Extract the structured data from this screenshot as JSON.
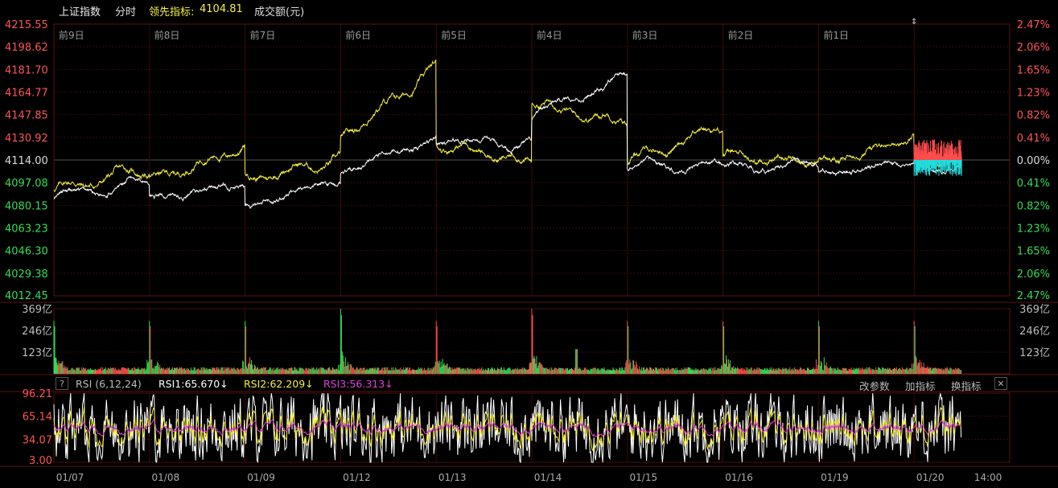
{
  "header": {
    "index_name": "上证指数",
    "mode": "分时",
    "leading_label": "领先指标:",
    "leading_value": "4104.81",
    "volume_label": "成交额(元)"
  },
  "price_axis": {
    "left_ticks": [
      "4215.55",
      "4198.62",
      "4181.70",
      "4164.77",
      "4147.85",
      "4130.92",
      "4114.00",
      "4097.08",
      "4080.15",
      "4063.23",
      "4046.30",
      "4029.38",
      "4012.45"
    ],
    "right_ticks": [
      "2.47%",
      "2.06%",
      "1.65%",
      "1.23%",
      "0.82%",
      "0.41%",
      "0.00%",
      "0.41%",
      "0.82%",
      "1.23%",
      "1.65%",
      "2.06%",
      "2.47%"
    ],
    "prev_close": 4114.0
  },
  "day_labels": [
    "前9日",
    "前8日",
    "前7日",
    "前6日",
    "前5日",
    "前4日",
    "前3日",
    "前2日",
    "前1日"
  ],
  "volume_axis": {
    "left_ticks": [
      "369亿",
      "246亿",
      "123亿"
    ],
    "right_ticks": [
      "369亿",
      "246亿",
      "123亿"
    ],
    "max": 369
  },
  "rsi": {
    "title": "RSI (6,12,24)",
    "rsi1": "RSI1:65.670↓",
    "rsi2": "RSI2:62.209↓",
    "rsi3": "RSI3:56.313↓",
    "ticks": [
      "96.21",
      "65.14",
      "34.07",
      "3.00"
    ],
    "help": "?",
    "buttons": {
      "params": "改参数",
      "add": "加指标",
      "switch": "换指标",
      "close": "✕"
    }
  },
  "date_labels": [
    "01/07",
    "01/08",
    "01/09",
    "01/12",
    "01/13",
    "01/14",
    "01/15",
    "01/16",
    "01/19",
    "01/20",
    "14:00"
  ],
  "colors": {
    "index_line": "#ffffff",
    "leading_line": "#f5f03c",
    "up": "#ff4d4d",
    "down": "#33dd55",
    "rsi1": "#ffffff",
    "rsi2": "#f5f03c",
    "rsi3": "#e040e0",
    "grid": "#3a0a0a"
  },
  "chart_data": {
    "type": "line",
    "title": "",
    "x_sessions": [
      "01/07",
      "01/08",
      "01/09",
      "01/12",
      "01/13",
      "01/14",
      "01/15",
      "01/16",
      "01/19",
      "01/20"
    ],
    "series": [
      {
        "name": "上证指数",
        "day_open": [
          4085,
          4084,
          4077,
          4104,
          4130,
          4147,
          4108,
          4108,
          4102,
          4114
        ],
        "day_close": [
          4099,
          4094,
          4100,
          4131,
          4124,
          4176,
          4111,
          4110,
          4114,
          4100
        ]
      },
      {
        "name": "领先指标",
        "day_open": [
          4092,
          4098,
          4101,
          4131,
          4128,
          4158,
          4112,
          4115,
          4112,
          4116
        ],
        "day_close": [
          4107,
          4126,
          4114,
          4182,
          4111,
          4143,
          4142,
          4115,
          4130,
          4104.81
        ]
      }
    ],
    "y_range": [
      4012.45,
      4215.55
    ],
    "volume_range_yi": [
      0,
      369
    ]
  }
}
